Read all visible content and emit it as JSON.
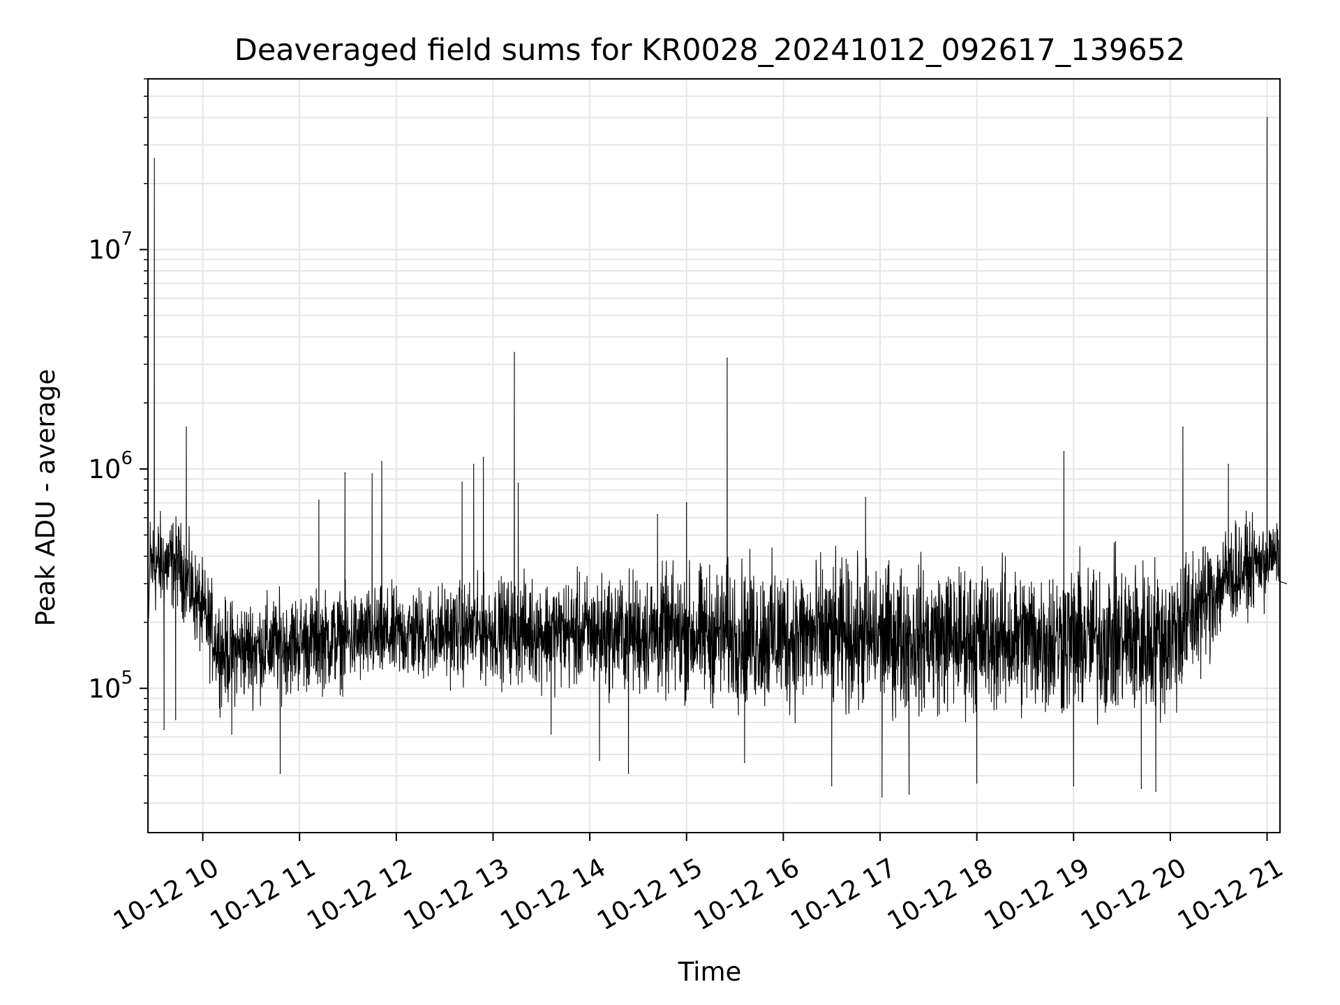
{
  "chart_data": {
    "type": "line",
    "title": "Deaveraged field sums for KR0028_20241012_092617_139652",
    "xlabel": "Time",
    "ylabel": "Peak ADU - average",
    "x_scale": "time (hours, 2024-10-12)",
    "y_scale": "log",
    "xlim": [
      "2024-10-12 09:26",
      "2024-10-12 21:08"
    ],
    "ylim": [
      22000,
      60000000
    ],
    "grid": true,
    "line_color": "#000000",
    "grid_color": "#e5e5e5",
    "x_ticks": [
      {
        "value": 10,
        "label": "10-12 10"
      },
      {
        "value": 11,
        "label": "10-12 11"
      },
      {
        "value": 12,
        "label": "10-12 12"
      },
      {
        "value": 13,
        "label": "10-12 13"
      },
      {
        "value": 14,
        "label": "10-12 14"
      },
      {
        "value": 15,
        "label": "10-12 15"
      },
      {
        "value": 16,
        "label": "10-12 16"
      },
      {
        "value": 17,
        "label": "10-12 17"
      },
      {
        "value": 18,
        "label": "10-12 18"
      },
      {
        "value": 19,
        "label": "10-12 19"
      },
      {
        "value": 20,
        "label": "10-12 20"
      },
      {
        "value": 21,
        "label": "10-12 21"
      }
    ],
    "y_ticks": [
      {
        "value": 100000,
        "base": "10",
        "exp": "5"
      },
      {
        "value": 1000000,
        "base": "10",
        "exp": "6"
      },
      {
        "value": 10000000,
        "base": "10",
        "exp": "7"
      }
    ],
    "series": [
      {
        "name": "",
        "x_unit": "hour of 2024-10-12",
        "baseline_envelope": [
          {
            "x": 9.45,
            "low": 170000,
            "high": 780000
          },
          {
            "x": 9.75,
            "low": 200000,
            "high": 700000
          },
          {
            "x": 10.2,
            "low": 70000,
            "high": 300000
          },
          {
            "x": 11.0,
            "low": 80000,
            "high": 330000
          },
          {
            "x": 12.0,
            "low": 90000,
            "high": 340000
          },
          {
            "x": 13.0,
            "low": 90000,
            "high": 380000
          },
          {
            "x": 14.0,
            "low": 80000,
            "high": 400000
          },
          {
            "x": 15.0,
            "low": 70000,
            "high": 450000
          },
          {
            "x": 16.0,
            "low": 60000,
            "high": 500000
          },
          {
            "x": 17.0,
            "low": 60000,
            "high": 480000
          },
          {
            "x": 18.0,
            "low": 60000,
            "high": 480000
          },
          {
            "x": 19.0,
            "low": 55000,
            "high": 500000
          },
          {
            "x": 20.0,
            "low": 55000,
            "high": 520000
          },
          {
            "x": 20.6,
            "low": 150000,
            "high": 700000
          },
          {
            "x": 21.2,
            "low": 300000,
            "high": 600000
          }
        ],
        "points": [
          {
            "x": 9.44,
            "y": 210000
          },
          {
            "x": 9.5,
            "y": 26000000
          },
          {
            "x": 9.52,
            "y": 350000
          },
          {
            "x": 9.6,
            "y": 65000
          },
          {
            "x": 9.72,
            "y": 72000
          },
          {
            "x": 9.83,
            "y": 1550000
          },
          {
            "x": 10.3,
            "y": 62000
          },
          {
            "x": 10.8,
            "y": 41000
          },
          {
            "x": 11.2,
            "y": 720000
          },
          {
            "x": 11.47,
            "y": 960000
          },
          {
            "x": 11.75,
            "y": 950000
          },
          {
            "x": 11.85,
            "y": 1080000
          },
          {
            "x": 12.68,
            "y": 870000
          },
          {
            "x": 12.8,
            "y": 1050000
          },
          {
            "x": 12.9,
            "y": 1130000
          },
          {
            "x": 13.22,
            "y": 3400000
          },
          {
            "x": 13.26,
            "y": 860000
          },
          {
            "x": 13.6,
            "y": 62000
          },
          {
            "x": 14.1,
            "y": 47000
          },
          {
            "x": 14.4,
            "y": 41000
          },
          {
            "x": 14.7,
            "y": 620000
          },
          {
            "x": 15.0,
            "y": 700000
          },
          {
            "x": 15.42,
            "y": 3200000
          },
          {
            "x": 15.6,
            "y": 46000
          },
          {
            "x": 16.5,
            "y": 36000
          },
          {
            "x": 16.85,
            "y": 740000
          },
          {
            "x": 17.02,
            "y": 32000
          },
          {
            "x": 17.3,
            "y": 33000
          },
          {
            "x": 18.0,
            "y": 37000
          },
          {
            "x": 18.9,
            "y": 1200000
          },
          {
            "x": 19.0,
            "y": 36000
          },
          {
            "x": 19.7,
            "y": 35000
          },
          {
            "x": 19.85,
            "y": 34000
          },
          {
            "x": 20.13,
            "y": 1550000
          },
          {
            "x": 20.6,
            "y": 1050000
          },
          {
            "x": 20.97,
            "y": 220000
          },
          {
            "x": 21.0,
            "y": 40000000
          },
          {
            "x": 21.05,
            "y": 380000
          },
          {
            "x": 21.2,
            "y": 300000
          }
        ]
      }
    ]
  }
}
